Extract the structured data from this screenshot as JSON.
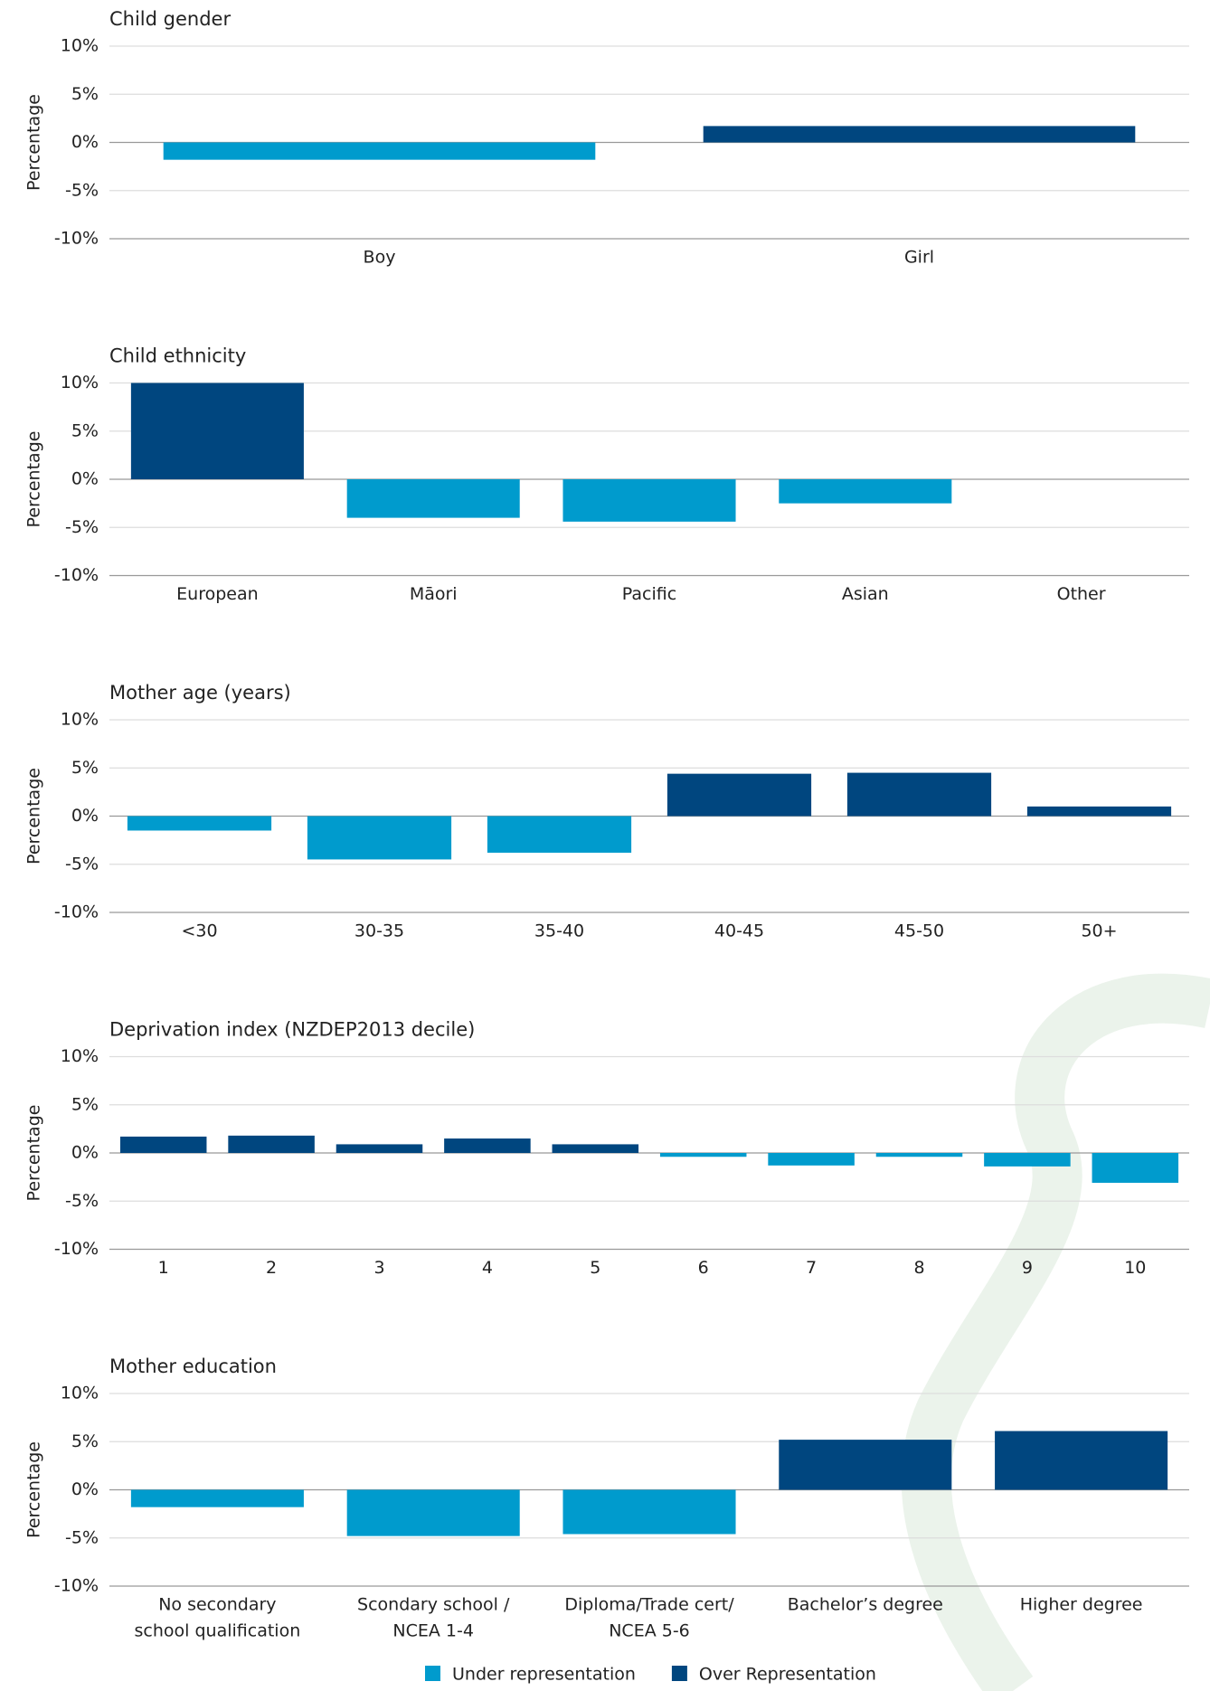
{
  "chart_data": [
    {
      "type": "bar",
      "title": "Child gender",
      "y_label": "Percentage",
      "categories": [
        [
          "Boy"
        ],
        [
          "Girl"
        ]
      ],
      "values": [
        -1.8,
        1.7
      ],
      "ylim": [
        -10,
        10
      ],
      "yticks": [
        {
          "value": -10,
          "label": "-10%"
        },
        {
          "value": -5,
          "label": "-5%"
        },
        {
          "value": 0,
          "label": "0%"
        },
        {
          "value": 5,
          "label": "5%"
        },
        {
          "value": 10,
          "label": "10%"
        }
      ]
    },
    {
      "type": "bar",
      "title": "Child ethnicity",
      "y_label": "Percentage",
      "categories": [
        [
          "European"
        ],
        [
          "Māori"
        ],
        [
          "Pacific"
        ],
        [
          "Asian"
        ],
        [
          "Other"
        ]
      ],
      "values": [
        10,
        -4,
        -4.4,
        -2.5,
        0
      ],
      "ylim": [
        -10,
        10
      ],
      "yticks": [
        {
          "value": -10,
          "label": "-10%"
        },
        {
          "value": -5,
          "label": "-5%"
        },
        {
          "value": 0,
          "label": "0%"
        },
        {
          "value": 5,
          "label": "5%"
        },
        {
          "value": 10,
          "label": "10%"
        }
      ]
    },
    {
      "type": "bar",
      "title": "Mother age (years)",
      "y_label": "Percentage",
      "categories": [
        [
          "<30"
        ],
        [
          "30-35"
        ],
        [
          "35-40"
        ],
        [
          "40-45"
        ],
        [
          "45-50"
        ],
        [
          "50+"
        ]
      ],
      "values": [
        -1.5,
        -4.5,
        -3.8,
        4.4,
        4.5,
        1.0
      ],
      "ylim": [
        -10,
        10
      ],
      "yticks": [
        {
          "value": -10,
          "label": "-10%"
        },
        {
          "value": -5,
          "label": "-5%"
        },
        {
          "value": 0,
          "label": "0%"
        },
        {
          "value": 5,
          "label": "5%"
        },
        {
          "value": 10,
          "label": "10%"
        }
      ]
    },
    {
      "type": "bar",
      "title": "Deprivation index (NZDEP2013 decile)",
      "y_label": "Percentage",
      "categories": [
        [
          "1"
        ],
        [
          "2"
        ],
        [
          "3"
        ],
        [
          "4"
        ],
        [
          "5"
        ],
        [
          "6"
        ],
        [
          "7"
        ],
        [
          "8"
        ],
        [
          "9"
        ],
        [
          "10"
        ]
      ],
      "values": [
        1.7,
        1.8,
        0.9,
        1.5,
        0.9,
        -0.4,
        -1.3,
        -0.4,
        -1.4,
        -3.1
      ],
      "ylim": [
        -10,
        10
      ],
      "yticks": [
        {
          "value": -10,
          "label": "-10%"
        },
        {
          "value": -5,
          "label": "-5%"
        },
        {
          "value": 0,
          "label": "0%"
        },
        {
          "value": 5,
          "label": "5%"
        },
        {
          "value": 10,
          "label": "10%"
        }
      ]
    },
    {
      "type": "bar",
      "title": "Mother education",
      "y_label": "Percentage",
      "categories": [
        [
          "No secondary",
          "school qualification"
        ],
        [
          "Scondary school /",
          "NCEA 1-4"
        ],
        [
          "Diploma/Trade cert/",
          "NCEA 5-6"
        ],
        [
          "Bachelor’s degree"
        ],
        [
          "Higher degree"
        ]
      ],
      "values": [
        -1.8,
        -4.8,
        -4.6,
        5.2,
        6.1
      ],
      "ylim": [
        -10,
        10
      ],
      "yticks": [
        {
          "value": -10,
          "label": "-10%"
        },
        {
          "value": -5,
          "label": "-5%"
        },
        {
          "value": 0,
          "label": "0%"
        },
        {
          "value": 5,
          "label": "5%"
        },
        {
          "value": 10,
          "label": "10%"
        }
      ]
    }
  ],
  "legend": [
    {
      "name": "Under representation",
      "color": "#009bcd"
    },
    {
      "name": "Over Representation",
      "color": "#00467f"
    }
  ]
}
